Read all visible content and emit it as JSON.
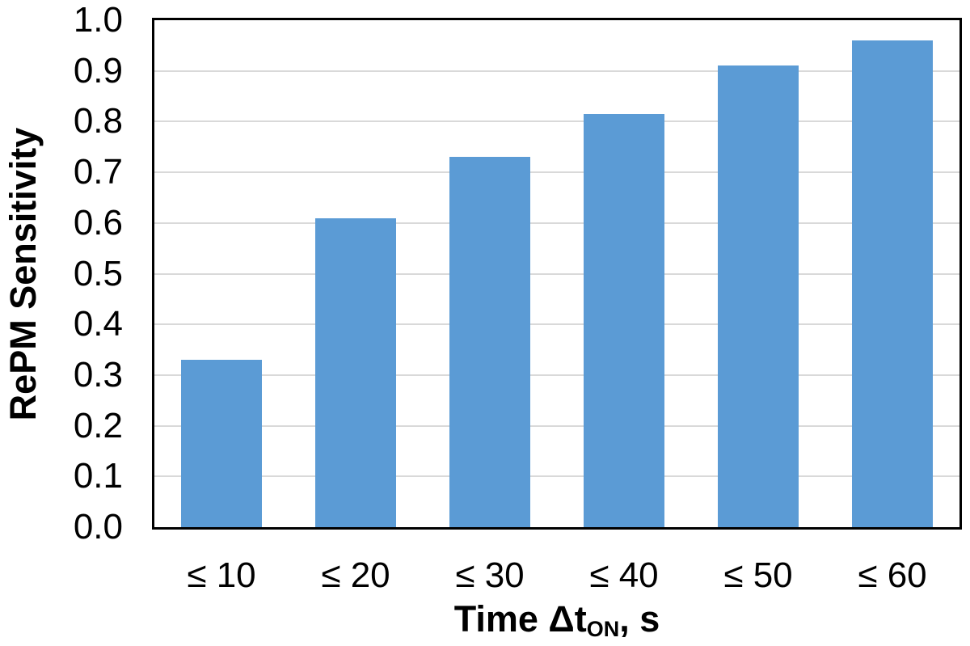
{
  "chart_data": {
    "type": "bar",
    "title": "",
    "categories": [
      "≤ 10",
      "≤ 20",
      "≤ 30",
      "≤ 40",
      "≤ 50",
      "≤ 60"
    ],
    "values": [
      0.33,
      0.61,
      0.73,
      0.815,
      0.91,
      0.96
    ],
    "series_name": "RePM Sensitivity",
    "xlabel": "Time ΔtON, s",
    "xlabel_parts": {
      "prefix": "Time Δt",
      "subscript": "ON",
      "suffix": ", s"
    },
    "ylabel": "RePM Sensitivity",
    "ylim": [
      0.0,
      1.0
    ],
    "ytick_step": 0.1,
    "ytick_labels": [
      "0.0",
      "0.1",
      "0.2",
      "0.3",
      "0.4",
      "0.5",
      "0.6",
      "0.7",
      "0.8",
      "0.9",
      "1.0"
    ],
    "grid": "horizontal-on",
    "legend": "none",
    "colors": {
      "bar_fill": "#5B9BD5",
      "gridline": "#D9D9D9",
      "frame": "#000000",
      "text": "#000000",
      "background": "#FFFFFF"
    }
  }
}
